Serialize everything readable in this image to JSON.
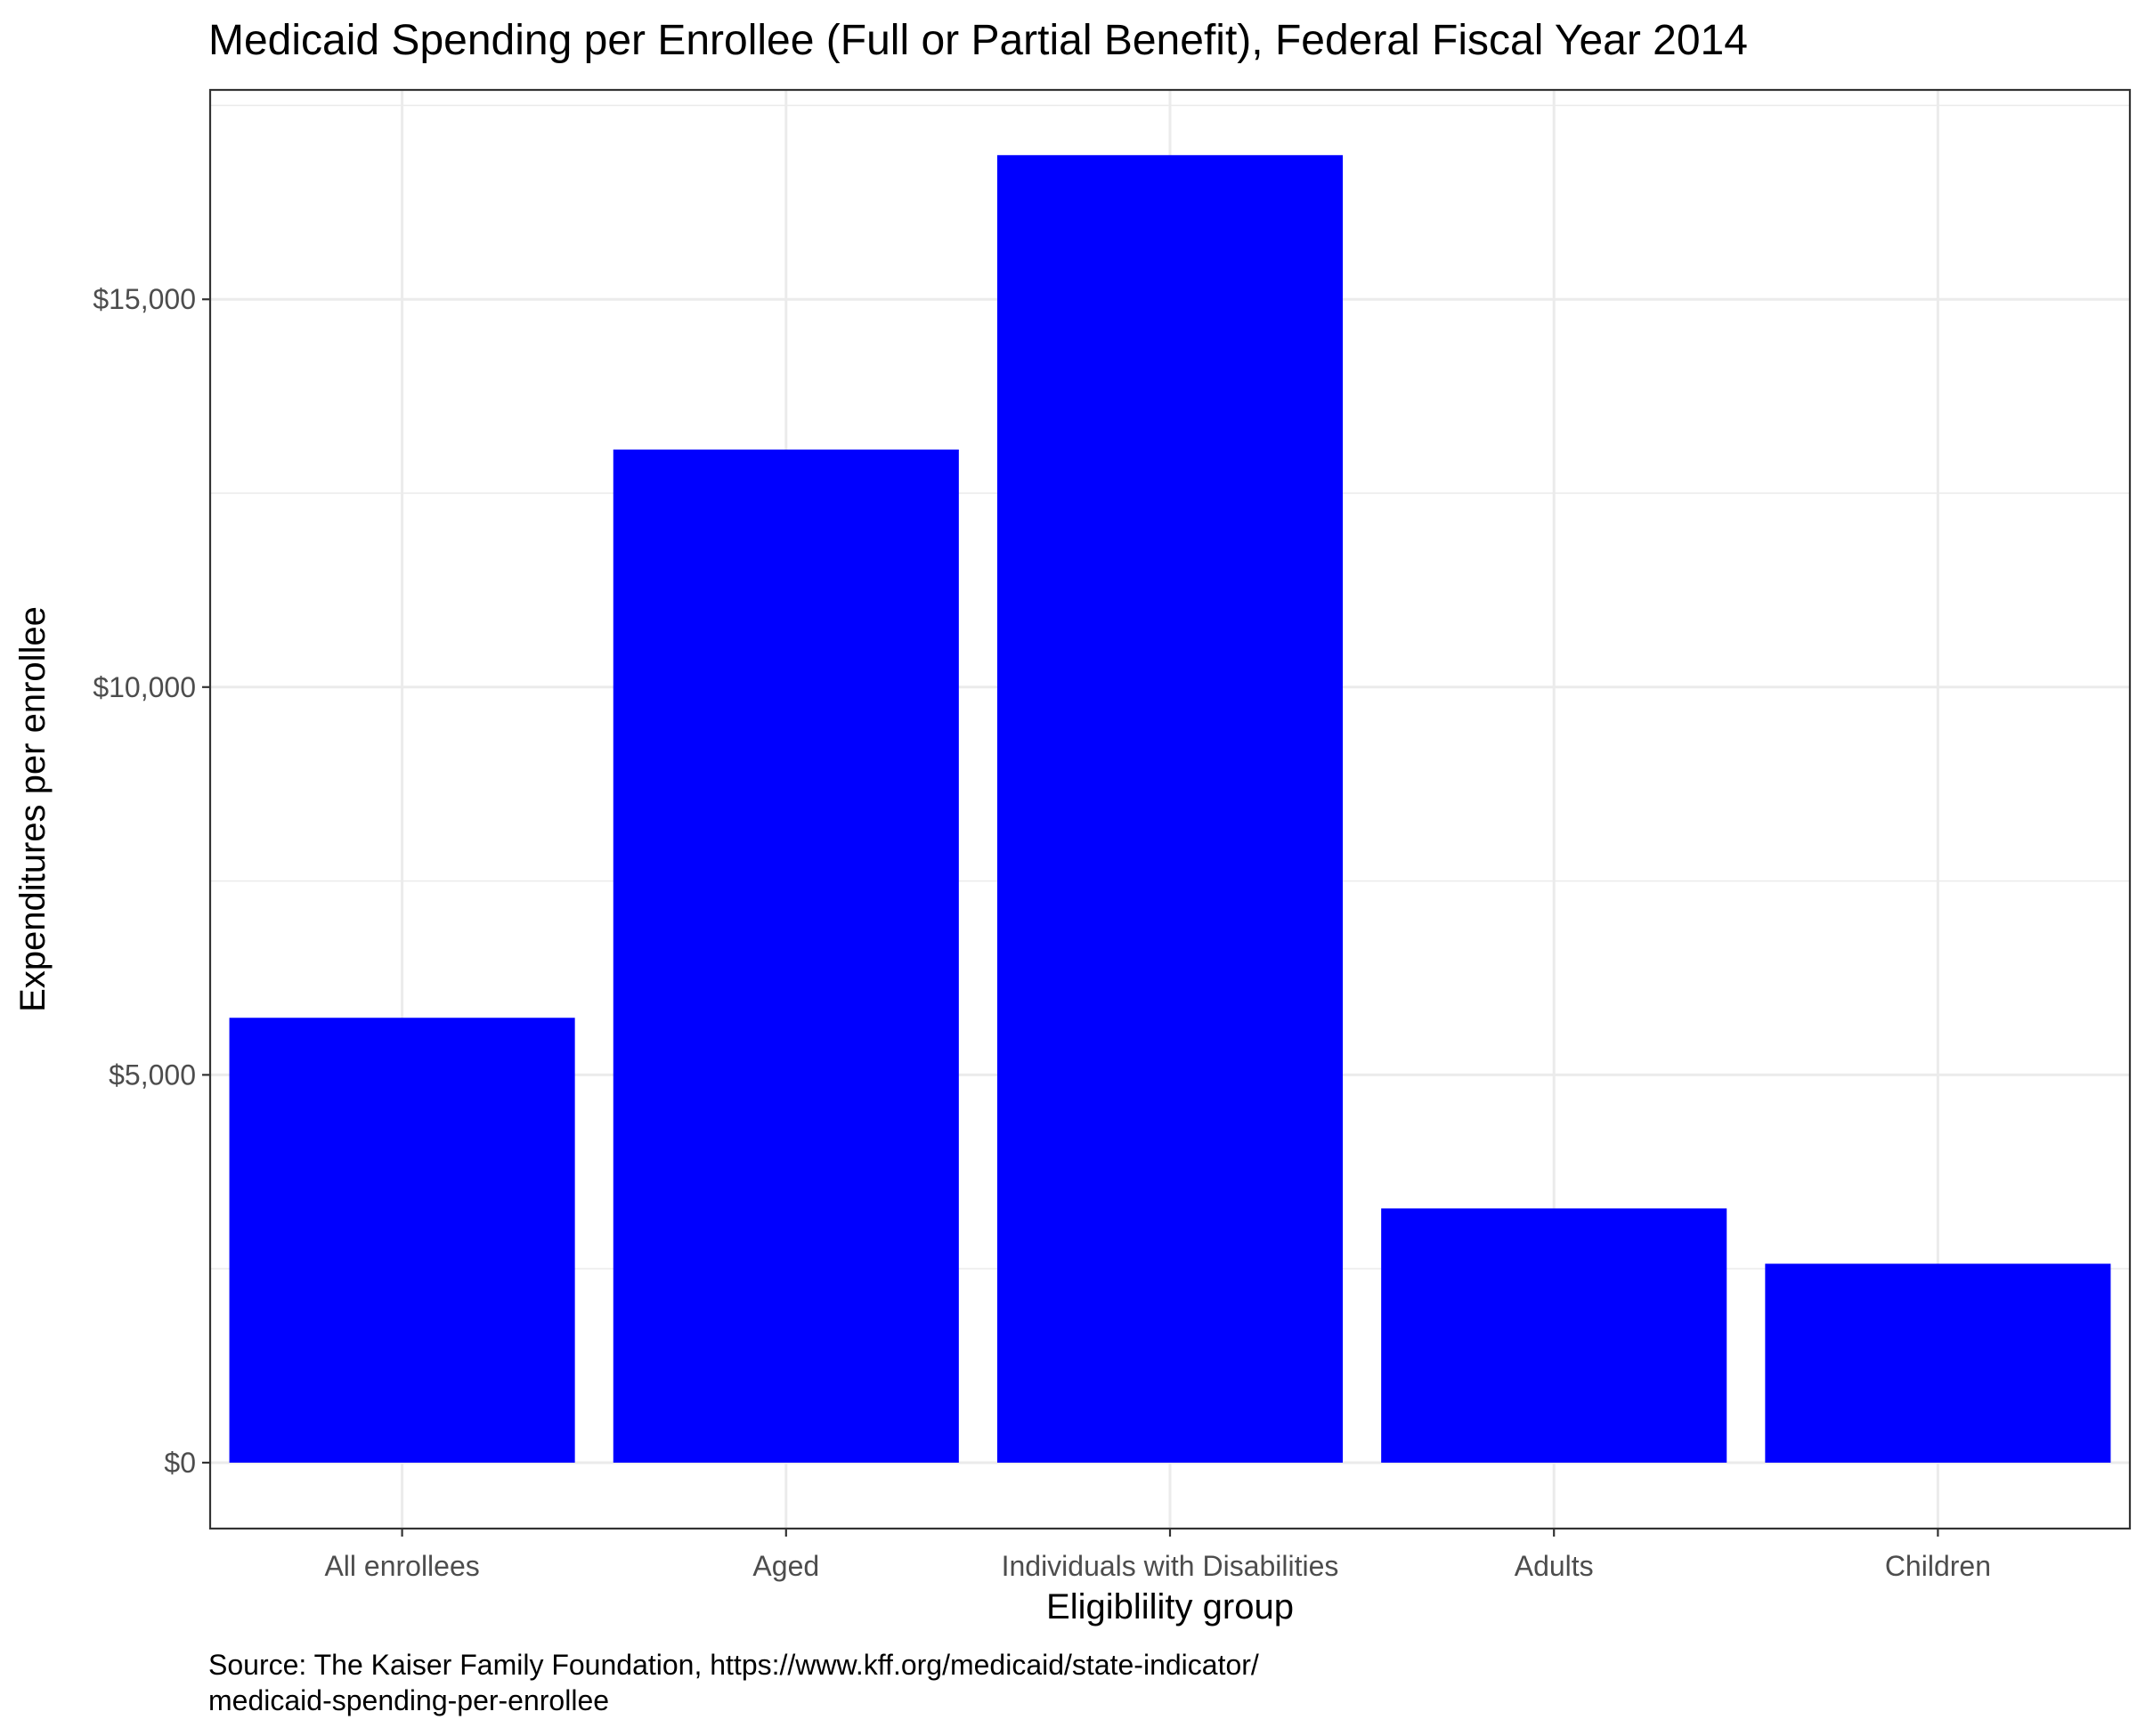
{
  "chart_data": {
    "type": "bar",
    "title": "Medicaid Spending per Enrollee (Full or Partial Benefit), Federal Fiscal Year 2014",
    "xlabel": "Eligiblility group",
    "ylabel": "Expenditures per enrollee",
    "categories": [
      "All enrollees",
      "Aged",
      "Individuals with Disabilities",
      "Adults",
      "Children"
    ],
    "values": [
      5736,
      13063,
      16859,
      3278,
      2565
    ],
    "ylim": [
      -850,
      17700
    ],
    "yticks": [
      0,
      5000,
      10000,
      15000
    ],
    "ytick_labels": [
      "$0",
      "$5,000",
      "$10,000",
      "$15,000"
    ],
    "grid": true,
    "bar_color": "#0000ff",
    "caption": [
      "Source: The Kaiser Family Foundation, https://www.kff.org/medicaid/state-indicator/",
      "medicaid-spending-per-enrollee"
    ]
  }
}
